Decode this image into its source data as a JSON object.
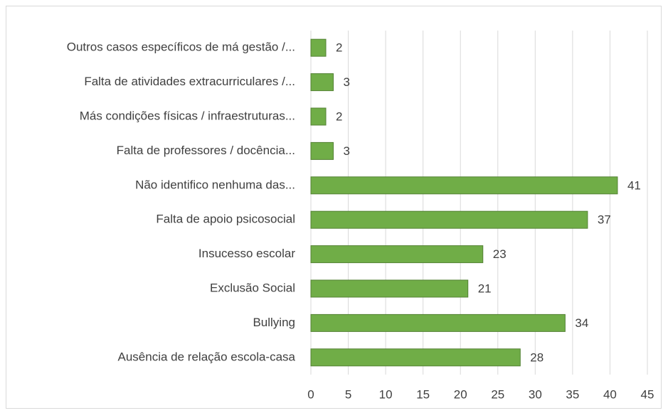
{
  "chart_data": {
    "type": "bar",
    "orientation": "horizontal",
    "categories": [
      "Outros casos específicos de má gestão /...",
      "Falta de atividades extracurriculares /...",
      "Más condições físicas / infraestruturas...",
      "Falta de professores / docência...",
      "Não identifico nenhuma das...",
      "Falta de apoio psicosocial",
      "Insucesso escolar",
      "Exclusão Social",
      "Bullying",
      "Ausência de relação escola-casa"
    ],
    "values": [
      2,
      3,
      2,
      3,
      41,
      37,
      23,
      21,
      34,
      28
    ],
    "color": "#70ad47",
    "xlim": [
      0,
      45
    ],
    "xticks": [
      0,
      5,
      10,
      15,
      20,
      25,
      30,
      35,
      40,
      45
    ],
    "grid": true
  }
}
